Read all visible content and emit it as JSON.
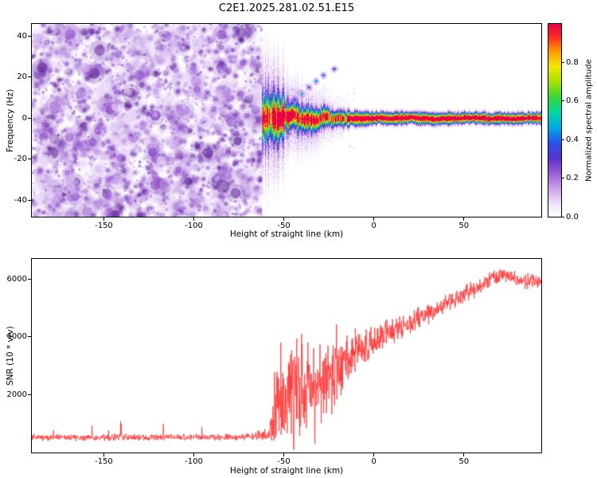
{
  "title": "C2E1.2025.281.02.51.E15",
  "chart_data": [
    {
      "type": "heatmap",
      "title": "C2E1.2025.281.02.51.E15",
      "xlabel": "Height of straight line (km)",
      "ylabel": "Frequency (Hz)",
      "xlim": [
        -190,
        93
      ],
      "ylim": [
        -48,
        46
      ],
      "xticks": [
        -150,
        -100,
        -50,
        0,
        50
      ],
      "yticks": [
        40,
        20,
        0,
        -20,
        -40
      ],
      "grid": false,
      "colorbar": {
        "label": "Normalized spectral amplitude",
        "ticks": [
          0.0,
          0.2,
          0.4,
          0.6,
          0.8
        ],
        "range": [
          0,
          1
        ],
        "position": "right"
      },
      "colormap_stops": [
        [
          0.0,
          "#ffffff"
        ],
        [
          0.06,
          "#f2e6fa"
        ],
        [
          0.14,
          "#cfa5ec"
        ],
        [
          0.22,
          "#9c5fd6"
        ],
        [
          0.3,
          "#5b33cc"
        ],
        [
          0.38,
          "#2b50e8"
        ],
        [
          0.46,
          "#00a8e8"
        ],
        [
          0.54,
          "#00d8a0"
        ],
        [
          0.62,
          "#38d838"
        ],
        [
          0.7,
          "#a8e000"
        ],
        [
          0.78,
          "#f0e800"
        ],
        [
          0.86,
          "#ff9800"
        ],
        [
          0.93,
          "#ff3020"
        ],
        [
          1.0,
          "#e80048"
        ]
      ],
      "noise_region": {
        "x_min": -190,
        "x_max": -62,
        "amplitude_range": [
          0,
          0.3
        ],
        "description": "dense random purple speckle noise filling full frequency range"
      },
      "signal_band": {
        "x_start": -62,
        "x_end": 93,
        "center_freq_hz": 0,
        "profile": [
          {
            "x": -62,
            "halfwidth": 6.0,
            "peak": 0.9,
            "wander": 2.6
          },
          {
            "x": -50,
            "halfwidth": 5.0,
            "peak": 1.0,
            "wander": 2.2
          },
          {
            "x": -35,
            "halfwidth": 4.0,
            "peak": 1.0,
            "wander": 1.6
          },
          {
            "x": -20,
            "halfwidth": 3.0,
            "peak": 1.0,
            "wander": 0.9
          },
          {
            "x": 0,
            "halfwidth": 2.2,
            "peak": 1.0,
            "wander": 0.4
          },
          {
            "x": 93,
            "halfwidth": 2.0,
            "peak": 1.0,
            "wander": 0.3
          }
        ]
      },
      "stray_echoes": [
        {
          "x": -48,
          "y": 6,
          "amp": 0.45
        },
        {
          "x": -44,
          "y": 9,
          "amp": 0.4
        },
        {
          "x": -40,
          "y": 12,
          "amp": 0.5
        },
        {
          "x": -36,
          "y": 15,
          "amp": 0.35
        },
        {
          "x": -32,
          "y": 18,
          "amp": 0.45
        },
        {
          "x": -28,
          "y": 21,
          "amp": 0.4
        },
        {
          "x": -22,
          "y": 24,
          "amp": 0.3
        }
      ]
    },
    {
      "type": "line",
      "xlabel": "Height of straight line (km)",
      "ylabel": "SNR (10 * v/v)",
      "xlim": [
        -190,
        93
      ],
      "ylim": [
        0,
        6700
      ],
      "xticks": [
        -150,
        -100,
        -50,
        0,
        50
      ],
      "yticks": [
        2000,
        4000,
        6000
      ],
      "grid": false,
      "color": "#ff3030",
      "series_name": "SNR",
      "envelope": [
        {
          "x": -190,
          "mean": 520,
          "jitter": 130
        },
        {
          "x": -140,
          "mean": 530,
          "jitter": 140
        },
        {
          "x": -100,
          "mean": 520,
          "jitter": 130
        },
        {
          "x": -70,
          "mean": 540,
          "jitter": 140
        },
        {
          "x": -58,
          "mean": 650,
          "jitter": 250
        },
        {
          "x": -54,
          "mean": 1900,
          "jitter": 1900
        },
        {
          "x": -50,
          "mean": 1600,
          "jitter": 1400
        },
        {
          "x": -45,
          "mean": 2000,
          "jitter": 1700
        },
        {
          "x": -40,
          "mean": 2100,
          "jitter": 1700
        },
        {
          "x": -34,
          "mean": 2300,
          "jitter": 1600
        },
        {
          "x": -28,
          "mean": 2500,
          "jitter": 1500
        },
        {
          "x": -22,
          "mean": 2800,
          "jitter": 1500
        },
        {
          "x": -16,
          "mean": 3200,
          "jitter": 1000
        },
        {
          "x": -10,
          "mean": 3500,
          "jitter": 850
        },
        {
          "x": -4,
          "mean": 3700,
          "jitter": 750
        },
        {
          "x": 2,
          "mean": 3900,
          "jitter": 650
        },
        {
          "x": 10,
          "mean": 4200,
          "jitter": 550
        },
        {
          "x": 18,
          "mean": 4450,
          "jitter": 500
        },
        {
          "x": 26,
          "mean": 4700,
          "jitter": 450
        },
        {
          "x": 34,
          "mean": 4950,
          "jitter": 420
        },
        {
          "x": 42,
          "mean": 5200,
          "jitter": 400
        },
        {
          "x": 50,
          "mean": 5450,
          "jitter": 380
        },
        {
          "x": 58,
          "mean": 5750,
          "jitter": 350
        },
        {
          "x": 66,
          "mean": 6050,
          "jitter": 300
        },
        {
          "x": 72,
          "mean": 6150,
          "jitter": 280
        },
        {
          "x": 80,
          "mean": 5980,
          "jitter": 300
        },
        {
          "x": 88,
          "mean": 5900,
          "jitter": 320
        },
        {
          "x": 93,
          "mean": 5880,
          "jitter": 300
        }
      ]
    }
  ]
}
